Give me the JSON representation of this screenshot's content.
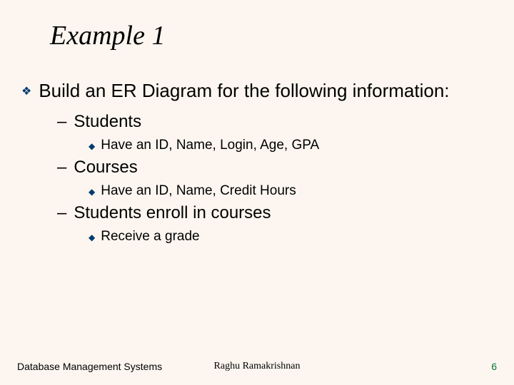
{
  "title": "Example 1",
  "bullet_main": "Build an ER Diagram for the following information:",
  "items": [
    {
      "label": "Students",
      "sub": "Have an ID, Name, Login, Age, GPA"
    },
    {
      "label": "Courses",
      "sub": "Have an ID, Name, Credit Hours"
    },
    {
      "label": "Students enroll in courses",
      "sub": "Receive a grade"
    }
  ],
  "footer": {
    "left": "Database Management Systems",
    "center": "Raghu Ramakrishnan",
    "page": "6"
  },
  "colors": {
    "background": "#fdf6f0",
    "bullet": "#003b6f",
    "page_number": "#007a33"
  }
}
